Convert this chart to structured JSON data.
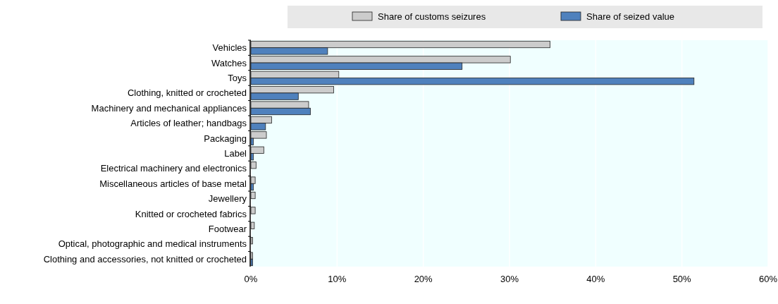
{
  "chart_data": {
    "type": "bar",
    "orientation": "horizontal",
    "categories": [
      "Vehicles",
      "Watches",
      "Toys",
      "Clothing, knitted or crocheted",
      "Machinery and mechanical appliances",
      "Articles of leather; handbags",
      "Packaging",
      "Label",
      "Electrical machinery and electronics",
      "Miscellaneous articles of base metal",
      "Jewellery",
      "Knitted or crocheted fabrics",
      "Footwear",
      "Optical, photographic and medical instruments",
      "Clothing and accessories, not knitted or crocheted"
    ],
    "series": [
      {
        "name": "Share of customs seizures",
        "color": "#cccccc",
        "values": [
          34.7,
          30.1,
          10.2,
          9.6,
          6.7,
          2.4,
          1.8,
          1.5,
          0.6,
          0.5,
          0.5,
          0.5,
          0.4,
          0.2,
          0.2
        ]
      },
      {
        "name": "Share of seized value",
        "color": "#4f81bd",
        "values": [
          8.9,
          24.5,
          51.4,
          5.5,
          6.9,
          1.7,
          0.3,
          0.3,
          0,
          0.3,
          0,
          0,
          0,
          0,
          0.2
        ]
      }
    ],
    "xlim": [
      0,
      60
    ],
    "xticks": [
      {
        "value": 0,
        "label": "0%"
      },
      {
        "value": 10,
        "label": "10%"
      },
      {
        "value": 20,
        "label": "20%"
      },
      {
        "value": 30,
        "label": "30%"
      },
      {
        "value": 40,
        "label": "40%"
      },
      {
        "value": 50,
        "label": "50%"
      },
      {
        "value": 60,
        "label": "60%"
      }
    ],
    "grid": "x",
    "legend": "top"
  }
}
